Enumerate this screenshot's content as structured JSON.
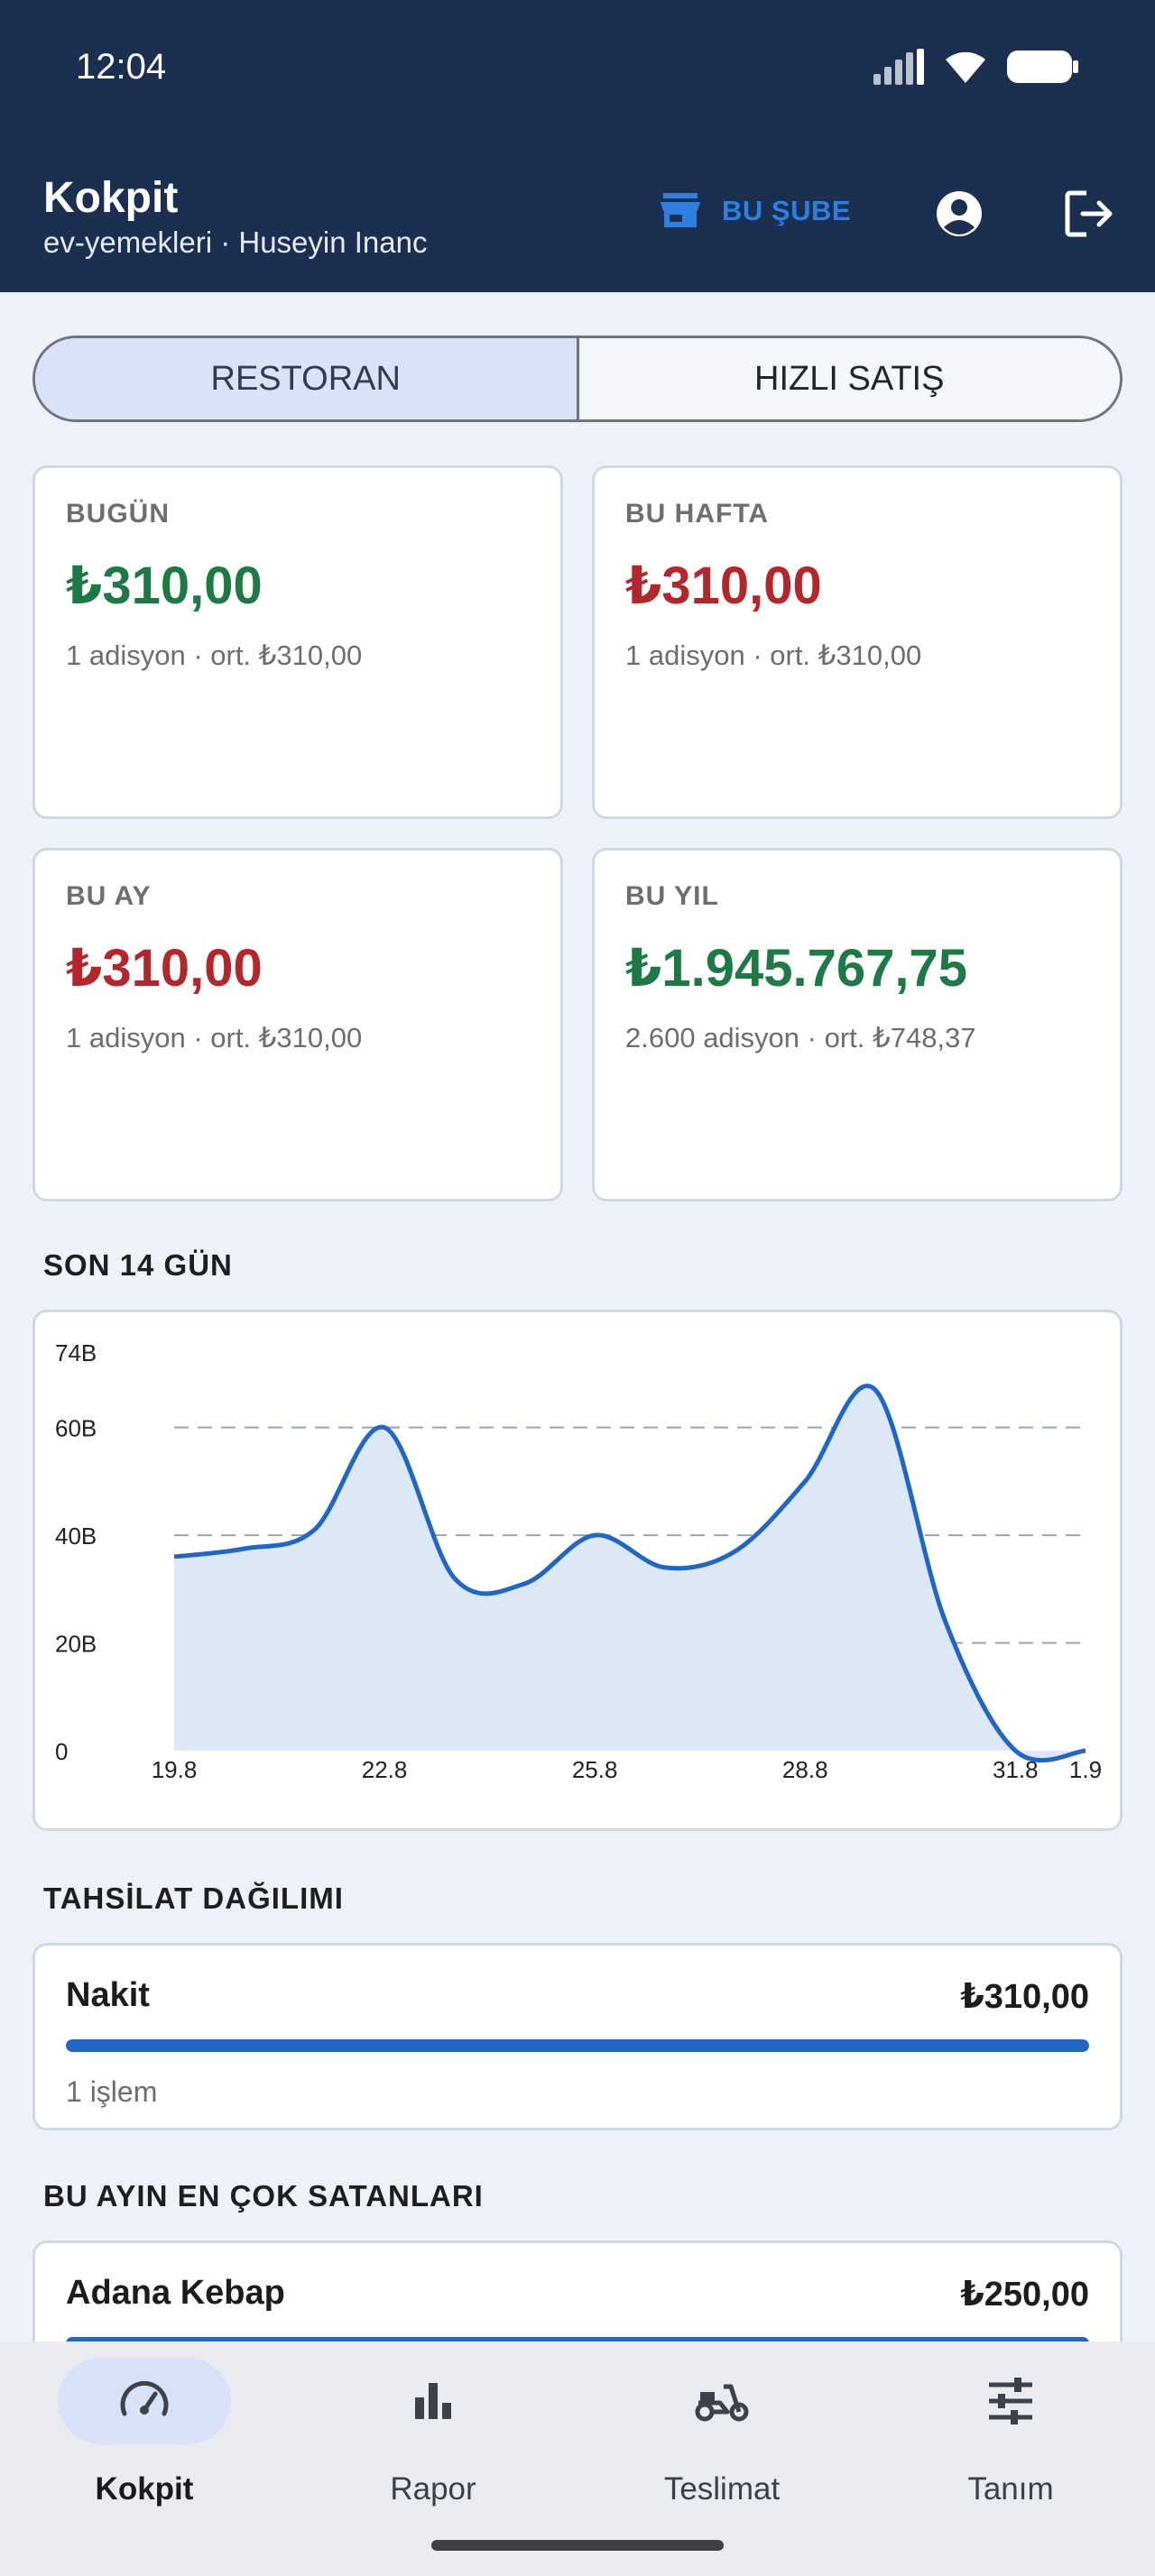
{
  "status_bar": {
    "time": "12:04"
  },
  "header": {
    "title": "Kokpit",
    "subtitle": "ev-yemekleri · Huseyin Inanc",
    "branch_label": "BU ŞUBE"
  },
  "segmented": {
    "items": [
      "RESTORAN",
      "HIZLI SATIŞ"
    ],
    "selected": "RESTORAN"
  },
  "stats": [
    {
      "label": "BUGÜN",
      "value": "₺310,00",
      "sub": "1 adisyon · ort. ₺310,00",
      "color": "#1e7a44"
    },
    {
      "label": "BU HAFTA",
      "value": "₺310,00",
      "sub": "1 adisyon · ort. ₺310,00",
      "color": "#b3262b"
    },
    {
      "label": "BU AY",
      "value": "₺310,00",
      "sub": "1 adisyon · ort. ₺310,00",
      "color": "#b3262b"
    },
    {
      "label": "BU YIL",
      "value": "₺1.945.767,75",
      "sub": "2.600 adisyon · ort. ₺748,37",
      "color": "#1e7a44"
    }
  ],
  "trend_section": {
    "title": "SON 14 GÜN"
  },
  "chart_data": {
    "type": "area",
    "x": [
      "19.8",
      "20.8",
      "21.8",
      "22.8",
      "23.8",
      "24.8",
      "25.8",
      "26.8",
      "27.8",
      "28.8",
      "29.8",
      "30.8",
      "31.8",
      "1.9"
    ],
    "x_tick_labels": [
      "19.8",
      "22.8",
      "25.8",
      "28.8",
      "31.8",
      "1.9"
    ],
    "values": [
      36000,
      37500,
      41000,
      60000,
      32000,
      31000,
      40000,
      34000,
      37000,
      50000,
      67000,
      24000,
      0,
      0
    ],
    "y_tick_labels": [
      "0",
      "20B",
      "40B",
      "60B",
      "74B"
    ],
    "ylim": [
      0,
      74000
    ],
    "grid": "dashed horizontal",
    "line_color": "#1f66c6",
    "fill_color": "#dde8f7"
  },
  "payment_section": {
    "title": "TAHSİLAT DAĞILIMI",
    "items": [
      {
        "name": "Nakit",
        "amount": "₺310,00",
        "sub": "1 işlem",
        "share": 1.0
      }
    ]
  },
  "top_sellers_section": {
    "title": "BU AYIN EN ÇOK SATANLARI",
    "items": [
      {
        "name": "Adana Kebap",
        "amount": "₺250,00",
        "share": 1.0
      }
    ]
  },
  "bottom_nav": {
    "items": [
      {
        "label": "Kokpit",
        "icon": "speedometer-icon",
        "active": true
      },
      {
        "label": "Rapor",
        "icon": "bar-chart-icon",
        "active": false
      },
      {
        "label": "Teslimat",
        "icon": "scooter-icon",
        "active": false
      },
      {
        "label": "Tanım",
        "icon": "tune-sliders-icon",
        "active": false
      }
    ]
  }
}
